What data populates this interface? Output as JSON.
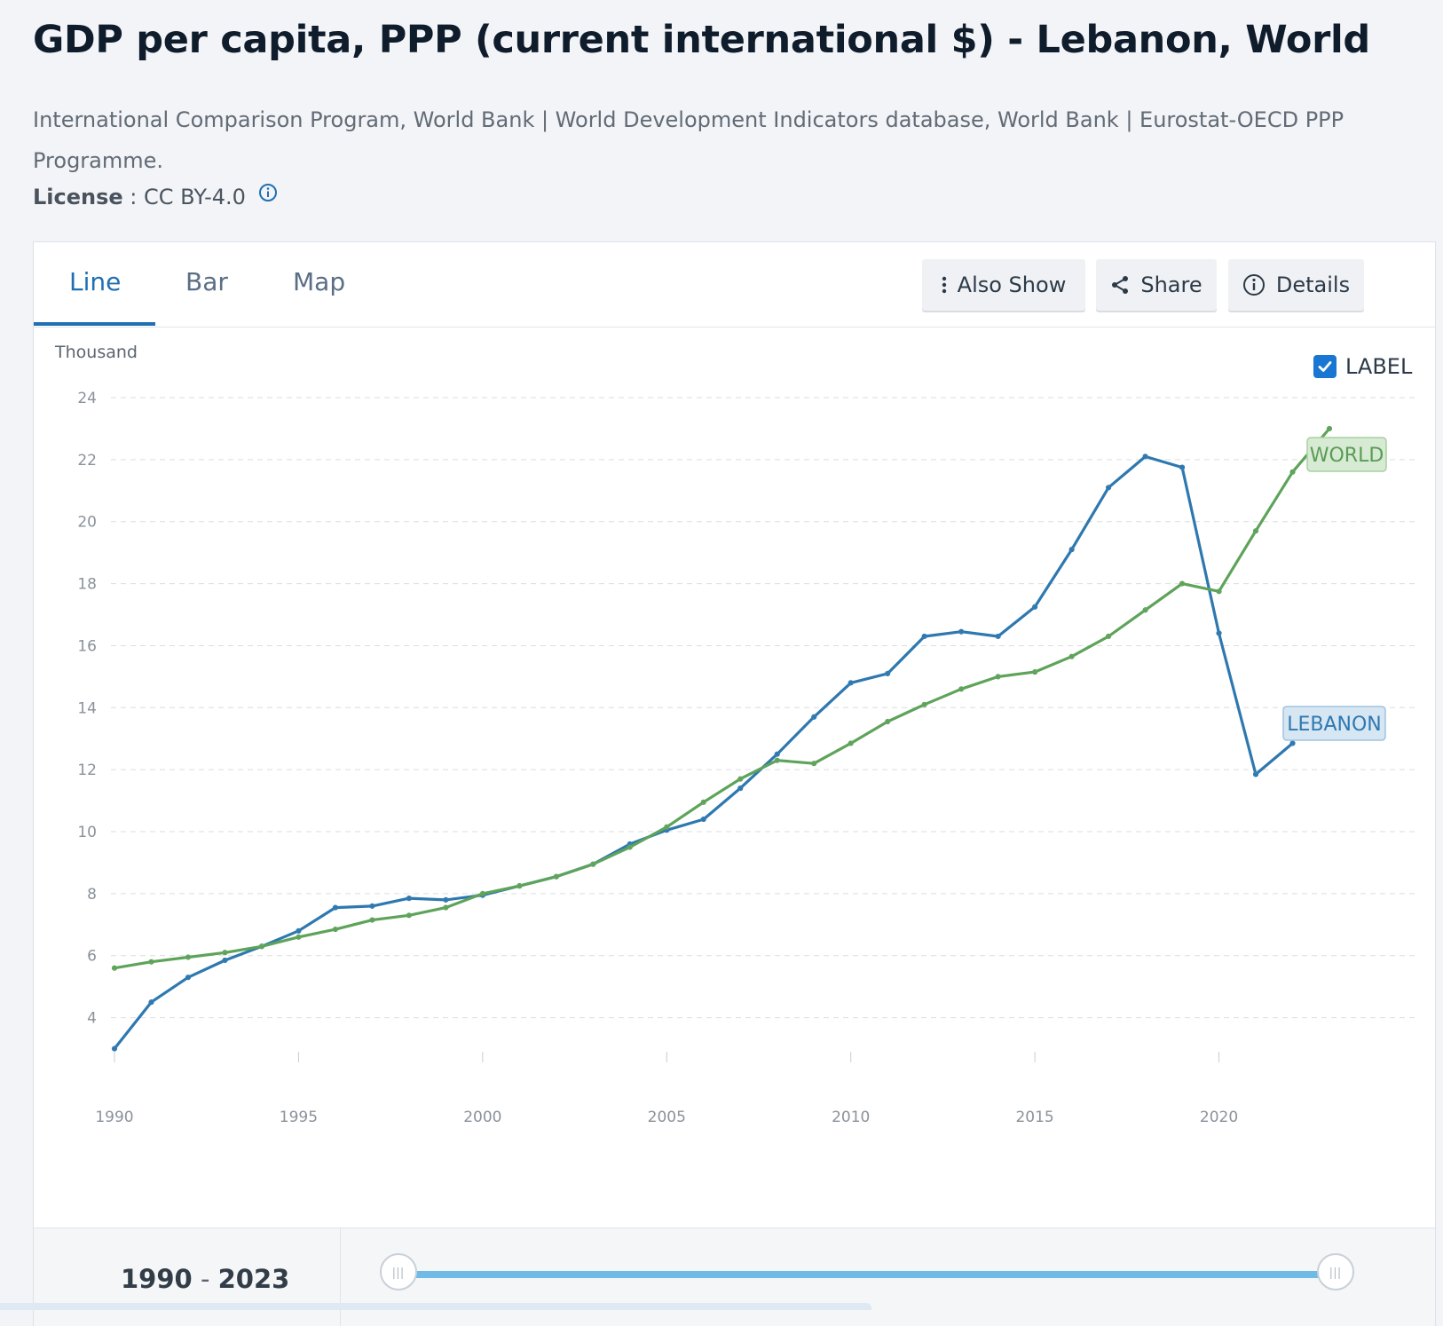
{
  "header": {
    "title": "GDP per capita, PPP (current international $) - Lebanon, World",
    "source": "International Comparison Program, World Bank | World Development Indicators database, World Bank | Eurostat-OECD PPP Programme.",
    "license_label": "License",
    "license_sep": " : ",
    "license_value": "CC BY-4.0"
  },
  "tabs": [
    {
      "label": "Line",
      "active": true
    },
    {
      "label": "Bar",
      "active": false
    },
    {
      "label": "Map",
      "active": false
    }
  ],
  "toolbar": {
    "also_show": "Also Show",
    "share": "Share",
    "details": "Details"
  },
  "label_toggle": {
    "label": "LABEL",
    "checked": true
  },
  "range": {
    "start": "1990",
    "end": "2023",
    "sep": "-"
  },
  "colors": {
    "lebanon": "#2e78b0",
    "world": "#5ea35a",
    "accent": "#1f6fb2"
  },
  "chart_data": {
    "type": "line",
    "title": "GDP per capita, PPP (current international $) - Lebanon, World",
    "ylabel": "Thousand",
    "xlabel": "",
    "ylim": [
      2.5,
      24
    ],
    "yticks": [
      4,
      6,
      8,
      10,
      12,
      14,
      16,
      18,
      20,
      22,
      24
    ],
    "xticks": [
      1990,
      1995,
      2000,
      2005,
      2010,
      2015,
      2020
    ],
    "xlim": [
      1990,
      2023
    ],
    "grid": true,
    "series": [
      {
        "name": "LEBANON",
        "color": "#2e78b0",
        "x": [
          1990,
          1991,
          1992,
          1993,
          1994,
          1995,
          1996,
          1997,
          1998,
          1999,
          2000,
          2001,
          2002,
          2003,
          2004,
          2005,
          2006,
          2007,
          2008,
          2009,
          2010,
          2011,
          2012,
          2013,
          2014,
          2015,
          2016,
          2017,
          2018,
          2019,
          2020,
          2021,
          2022
        ],
        "values": [
          3.0,
          4.5,
          5.3,
          5.85,
          6.3,
          6.8,
          7.55,
          7.6,
          7.85,
          7.8,
          7.95,
          8.25,
          8.55,
          8.95,
          9.6,
          10.05,
          10.4,
          11.4,
          12.5,
          13.7,
          14.8,
          15.1,
          16.3,
          16.45,
          16.3,
          17.25,
          19.1,
          21.1,
          22.1,
          21.75,
          16.4,
          11.85,
          12.85
        ]
      },
      {
        "name": "WORLD",
        "color": "#5ea35a",
        "x": [
          1990,
          1991,
          1992,
          1993,
          1994,
          1995,
          1996,
          1997,
          1998,
          1999,
          2000,
          2001,
          2002,
          2003,
          2004,
          2005,
          2006,
          2007,
          2008,
          2009,
          2010,
          2011,
          2012,
          2013,
          2014,
          2015,
          2016,
          2017,
          2018,
          2019,
          2020,
          2021,
          2022,
          2023
        ],
        "values": [
          5.6,
          5.8,
          5.95,
          6.1,
          6.3,
          6.6,
          6.85,
          7.15,
          7.3,
          7.55,
          8.0,
          8.25,
          8.55,
          8.95,
          9.5,
          10.15,
          10.95,
          11.7,
          12.3,
          12.2,
          12.85,
          13.55,
          14.1,
          14.6,
          15.0,
          15.15,
          15.65,
          16.3,
          17.15,
          18.0,
          17.75,
          19.7,
          21.6,
          23.0
        ]
      }
    ],
    "series_labels": [
      "WORLD",
      "LEBANON"
    ]
  }
}
